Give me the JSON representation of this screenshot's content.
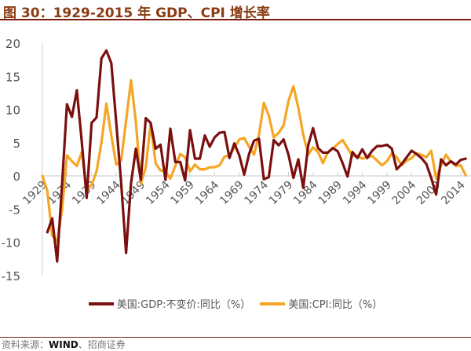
{
  "title": "图 30：1929-2015 年 GDP、CPI 增长率",
  "source": {
    "prefix": "资料来源：",
    "strong": "WIND",
    "suffix": "、招商证券"
  },
  "chart_data": {
    "type": "line",
    "title": "图 30：1929-2015 年 GDP、CPI 增长率",
    "xlabel": "",
    "ylabel": "",
    "ylim": [
      -15,
      20
    ],
    "yticks": [
      -15,
      -10,
      -5,
      0,
      5,
      10,
      15,
      20
    ],
    "xlim": [
      1929,
      2016
    ],
    "xticks": [
      1929,
      1934,
      1939,
      1944,
      1949,
      1954,
      1959,
      1964,
      1969,
      1974,
      1979,
      1984,
      1989,
      1994,
      1999,
      2004,
      2009,
      2014
    ],
    "grid": false,
    "legend": "bottom",
    "series": [
      {
        "name": "美国:GDP:不变价:同比（%）",
        "color": "#7b0f0f",
        "x": [
          1930,
          1931,
          1932,
          1933,
          1934,
          1935,
          1936,
          1937,
          1938,
          1939,
          1940,
          1941,
          1942,
          1943,
          1944,
          1945,
          1946,
          1947,
          1948,
          1949,
          1950,
          1951,
          1952,
          1953,
          1954,
          1955,
          1956,
          1957,
          1958,
          1959,
          1960,
          1961,
          1962,
          1963,
          1964,
          1965,
          1966,
          1967,
          1968,
          1969,
          1970,
          1971,
          1972,
          1973,
          1974,
          1975,
          1976,
          1977,
          1978,
          1979,
          1980,
          1981,
          1982,
          1983,
          1984,
          1985,
          1986,
          1987,
          1988,
          1989,
          1990,
          1991,
          1992,
          1993,
          1994,
          1995,
          1996,
          1997,
          1998,
          1999,
          2000,
          2001,
          2002,
          2003,
          2004,
          2005,
          2006,
          2007,
          2008,
          2009,
          2010,
          2011,
          2012,
          2013,
          2014,
          2015
        ],
        "values": [
          -8.5,
          -6.4,
          -12.9,
          -1.2,
          10.8,
          8.9,
          12.9,
          5.1,
          -3.3,
          8.0,
          8.8,
          17.7,
          18.9,
          17.0,
          8.0,
          -1.0,
          -11.6,
          -1.1,
          4.1,
          -0.6,
          8.7,
          8.0,
          4.1,
          4.7,
          -0.6,
          7.1,
          2.1,
          2.1,
          -0.7,
          6.9,
          2.6,
          2.6,
          6.1,
          4.4,
          5.8,
          6.5,
          6.6,
          2.7,
          4.9,
          3.1,
          0.2,
          3.3,
          5.3,
          5.6,
          -0.5,
          -0.2,
          5.4,
          4.6,
          5.5,
          3.2,
          -0.3,
          2.5,
          -1.8,
          4.6,
          7.2,
          4.2,
          3.5,
          3.5,
          4.2,
          3.7,
          1.9,
          -0.1,
          3.6,
          2.7,
          4.0,
          2.7,
          3.8,
          4.5,
          4.5,
          4.7,
          4.1,
          1.0,
          1.8,
          2.8,
          3.8,
          3.3,
          2.7,
          1.8,
          -0.3,
          -2.8,
          2.5,
          1.6,
          2.2,
          1.7,
          2.4,
          2.6
        ]
      },
      {
        "name": "美国:CPI:同比（%）",
        "color": "#f5a623",
        "x": [
          1929,
          1930,
          1931,
          1932,
          1933,
          1934,
          1935,
          1936,
          1937,
          1938,
          1939,
          1940,
          1941,
          1942,
          1943,
          1944,
          1945,
          1946,
          1947,
          1948,
          1949,
          1950,
          1951,
          1952,
          1953,
          1954,
          1955,
          1956,
          1957,
          1958,
          1959,
          1960,
          1961,
          1962,
          1963,
          1964,
          1965,
          1966,
          1967,
          1968,
          1969,
          1970,
          1971,
          1972,
          1973,
          1974,
          1975,
          1976,
          1977,
          1978,
          1979,
          1980,
          1981,
          1982,
          1983,
          1984,
          1985,
          1986,
          1987,
          1988,
          1989,
          1990,
          1991,
          1992,
          1993,
          1994,
          1995,
          1996,
          1997,
          1998,
          1999,
          2000,
          2001,
          2002,
          2003,
          2004,
          2005,
          2006,
          2007,
          2008,
          2009,
          2010,
          2011,
          2012,
          2013,
          2014,
          2015
        ],
        "values": [
          0.0,
          -2.3,
          -9.0,
          -9.9,
          -5.1,
          3.1,
          2.2,
          1.5,
          3.6,
          -2.1,
          -1.4,
          0.7,
          5.0,
          10.9,
          6.1,
          1.7,
          2.3,
          8.3,
          14.4,
          8.1,
          -1.2,
          1.3,
          7.9,
          1.9,
          0.8,
          0.7,
          -0.4,
          1.5,
          3.3,
          2.8,
          0.7,
          1.7,
          1.0,
          1.0,
          1.3,
          1.3,
          1.6,
          2.9,
          3.1,
          4.2,
          5.5,
          5.7,
          4.4,
          3.2,
          6.2,
          11.0,
          9.1,
          5.8,
          6.5,
          7.6,
          11.3,
          13.5,
          10.3,
          6.2,
          3.2,
          4.3,
          3.6,
          1.9,
          3.6,
          4.1,
          4.8,
          5.4,
          4.2,
          3.0,
          3.0,
          2.6,
          2.8,
          3.0,
          2.3,
          1.6,
          2.2,
          3.4,
          2.8,
          1.6,
          2.3,
          2.7,
          3.4,
          3.2,
          2.8,
          3.8,
          -0.4,
          1.6,
          3.2,
          2.1,
          1.5,
          1.6,
          0.1
        ]
      }
    ]
  }
}
